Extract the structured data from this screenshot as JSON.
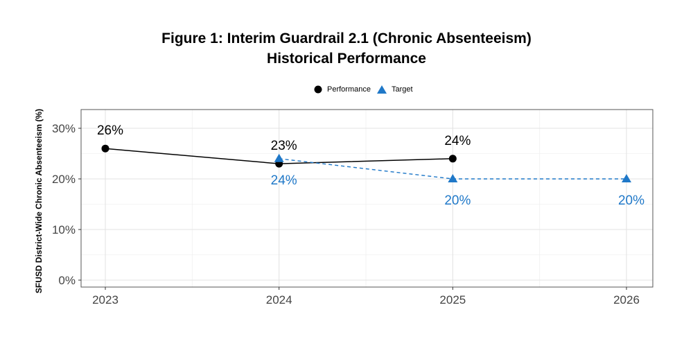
{
  "title_line1": "Figure 1: Interim Guardrail 2.1 (Chronic Absenteeism)",
  "title_line2": "Historical Performance",
  "legend": [
    {
      "name": "Performance",
      "marker": "circle",
      "color": "#000000"
    },
    {
      "name": "Target",
      "marker": "triangle",
      "color": "#1f78c8"
    }
  ],
  "chart_data": {
    "type": "line",
    "title": "Figure 1: Interim Guardrail 2.1 (Chronic Absenteeism) Historical Performance",
    "xlabel": "",
    "ylabel": "SFUSD District-Wide Chronic Absenteeism (%)",
    "x_ticks": [
      "2023",
      "2024",
      "2025",
      "2026"
    ],
    "y_ticks": [
      "0%",
      "10%",
      "20%",
      "30%"
    ],
    "xlim": [
      2023,
      2026
    ],
    "ylim": [
      0,
      30
    ],
    "grid": true,
    "legend_position": "top",
    "series": [
      {
        "name": "Performance",
        "color": "#000000",
        "line_style": "solid",
        "marker": "circle",
        "x": [
          2023,
          2024,
          2025
        ],
        "y": [
          26,
          23,
          24
        ],
        "labels": [
          "26%",
          "23%",
          "24%"
        ],
        "label_position": "above"
      },
      {
        "name": "Target",
        "color": "#1f78c8",
        "line_style": "dashed",
        "marker": "triangle",
        "x": [
          2024,
          2025,
          2026
        ],
        "y": [
          24,
          20,
          20
        ],
        "labels": [
          "24%",
          "20%",
          "20%"
        ],
        "label_position": "below"
      }
    ]
  }
}
